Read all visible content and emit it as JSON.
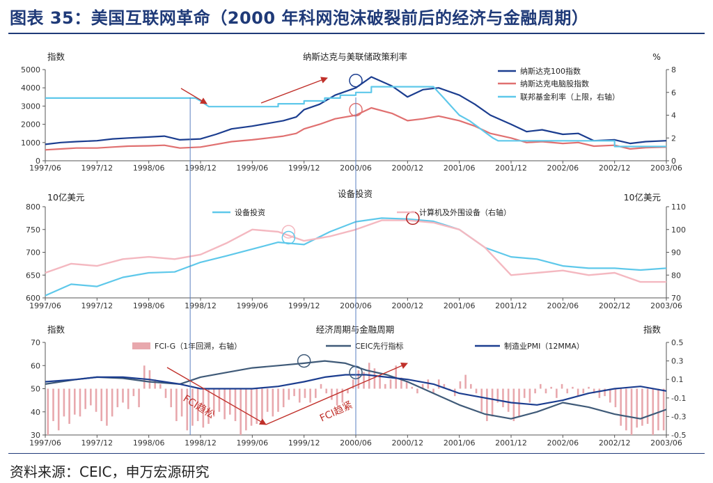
{
  "title": "图表 35：美国互联网革命（2000 年科网泡沫破裂前后的经济与金融周期）",
  "source": "资料来源：CEIC，申万宏源研究",
  "colors": {
    "title": "#1f3a78",
    "navy": "#1b3d8f",
    "red": "#e07070",
    "cyan": "#5ec8ea",
    "pink": "#f4b8c0",
    "slate": "#3f5a78",
    "bar": "#e8a8ad",
    "vline": "#5a7fc0"
  },
  "x_ticks": [
    "1997/06",
    "1997/12",
    "1998/06",
    "1998/12",
    "1999/06",
    "1999/12",
    "2000/06",
    "2000/12",
    "2001/06",
    "2001/12",
    "2002/06",
    "2002/12",
    "2003/06"
  ],
  "chart_data": [
    {
      "type": "line",
      "title": "纳斯达克与美联储政策利率",
      "ylabel_left": "指数",
      "ylabel_right": "%",
      "ylim_left": [
        0,
        5000
      ],
      "yticks_left": [
        "0",
        "1000",
        "2000",
        "3000",
        "4000",
        "5000"
      ],
      "ylim_right": [
        0,
        8
      ],
      "yticks_right": [
        "0",
        "2",
        "4",
        "6",
        "8"
      ],
      "series": [
        {
          "name": "纳斯达克100指数",
          "axis": "left",
          "color": "#1b3d8f",
          "x": [
            0,
            0.3,
            0.6,
            1,
            1.3,
            1.6,
            2,
            2.3,
            2.6,
            3,
            3.3,
            3.6,
            4,
            4.3,
            4.6,
            4.85,
            5,
            5.3,
            5.6,
            6,
            6.3,
            6.7,
            7,
            7.3,
            7.6,
            8,
            8.3,
            8.6,
            9,
            9.3,
            9.6,
            10,
            10.3,
            10.6,
            11,
            11.3,
            11.6,
            12
          ],
          "values": [
            900,
            1000,
            1050,
            1100,
            1200,
            1250,
            1300,
            1350,
            1150,
            1200,
            1450,
            1750,
            1900,
            2050,
            2200,
            2400,
            2800,
            3100,
            3600,
            4000,
            4600,
            4100,
            3500,
            3900,
            4000,
            3600,
            3100,
            2500,
            2000,
            1600,
            1700,
            1450,
            1500,
            1100,
            1150,
            950,
            1050,
            1100
          ]
        },
        {
          "name": "纳斯达克电脑股指数",
          "axis": "left",
          "color": "#e07070",
          "x": [
            0,
            0.3,
            0.6,
            1,
            1.3,
            1.6,
            2,
            2.3,
            2.6,
            3,
            3.3,
            3.6,
            4,
            4.3,
            4.6,
            4.85,
            5,
            5.3,
            5.6,
            6,
            6.3,
            6.7,
            7,
            7.3,
            7.6,
            8,
            8.3,
            8.6,
            9,
            9.3,
            9.6,
            10,
            10.3,
            10.6,
            11,
            11.3,
            11.6,
            12
          ],
          "values": [
            600,
            650,
            700,
            700,
            750,
            800,
            820,
            850,
            700,
            750,
            900,
            1050,
            1150,
            1250,
            1350,
            1500,
            1750,
            2000,
            2300,
            2500,
            2900,
            2600,
            2200,
            2300,
            2450,
            2200,
            1900,
            1500,
            1250,
            1000,
            1050,
            950,
            1000,
            800,
            850,
            650,
            720,
            750
          ]
        },
        {
          "name": "联邦基金利率（上限，右轴）",
          "axis": "right",
          "color": "#5ec8ea",
          "x": [
            0,
            1,
            2,
            2.9,
            3,
            3.08,
            3.16,
            3.3,
            4,
            4.5,
            4.5,
            5.0,
            5.0,
            5.4,
            5.4,
            5.7,
            5.7,
            6.0,
            6.0,
            6.3,
            6.3,
            7,
            7.5,
            7.6,
            7.7,
            7.8,
            7.9,
            8.0,
            8.1,
            8.2,
            8.35,
            8.5,
            8.65,
            8.75,
            8.85,
            8.95,
            9.05,
            9.3,
            9.5,
            10,
            10.5,
            11.0,
            11.0,
            12
          ],
          "values": [
            5.5,
            5.5,
            5.5,
            5.5,
            5.25,
            5.0,
            4.75,
            4.75,
            4.75,
            4.75,
            5.0,
            5.0,
            5.25,
            5.25,
            5.5,
            5.5,
            5.75,
            5.75,
            6.0,
            6.0,
            6.5,
            6.5,
            6.5,
            6.0,
            5.5,
            5.0,
            4.5,
            4.0,
            3.75,
            3.5,
            3.0,
            2.5,
            2.0,
            1.75,
            1.75,
            1.75,
            1.75,
            1.75,
            1.75,
            1.75,
            1.75,
            1.75,
            1.25,
            1.25
          ]
        }
      ],
      "annotations": [
        {
          "kind": "circle",
          "series": "纳斯达克100指数",
          "x": 6.0,
          "y": 4400
        },
        {
          "kind": "circle",
          "series": "纳斯达克电脑股指数",
          "x": 6.0,
          "y": 2800
        }
      ]
    },
    {
      "type": "line",
      "title": "设备投资",
      "ylabel_left": "10亿美元",
      "ylabel_right": "10亿美元",
      "ylim_left": [
        600,
        800
      ],
      "yticks_left": [
        "600",
        "650",
        "700",
        "750",
        "800"
      ],
      "ylim_right": [
        70,
        110
      ],
      "yticks_right": [
        "70",
        "80",
        "90",
        "100",
        "110"
      ],
      "series": [
        {
          "name": "设备投资",
          "axis": "left",
          "color": "#5ec8ea",
          "x": [
            0,
            0.5,
            1,
            1.5,
            2,
            2.5,
            3,
            3.5,
            4,
            4.5,
            5,
            5.5,
            6,
            6.5,
            7,
            7.5,
            8,
            8.5,
            9,
            9.5,
            10,
            10.5,
            11,
            11.5,
            12
          ],
          "values": [
            605,
            630,
            625,
            645,
            655,
            657,
            678,
            692,
            707,
            722,
            717,
            745,
            767,
            775,
            773,
            768,
            750,
            710,
            690,
            685,
            670,
            665,
            665,
            661,
            665
          ]
        },
        {
          "name": "计算机及外围设备（右轴）",
          "axis": "right",
          "color": "#f4b8c0",
          "x": [
            0,
            0.5,
            1,
            1.5,
            2,
            2.5,
            3,
            3.5,
            4,
            4.5,
            5,
            5.5,
            6,
            6.5,
            7,
            7.5,
            8,
            8.5,
            9,
            9.5,
            10,
            10.5,
            11,
            11.5,
            12
          ],
          "values": [
            81,
            85,
            84,
            87,
            88,
            87,
            89,
            94,
            100,
            99,
            95,
            97,
            100,
            104,
            104,
            103,
            100,
            92,
            80,
            81,
            82,
            80,
            81,
            77,
            77
          ]
        }
      ],
      "annotations": [
        {
          "kind": "circle",
          "series": "计算机及外围设备（右轴）",
          "x": 4.7,
          "y": 99
        },
        {
          "kind": "circle",
          "series": "设备投资",
          "x": 4.7,
          "y": 732
        },
        {
          "kind": "circle",
          "series": "设备投资",
          "x": 7.1,
          "y": 775
        }
      ]
    },
    {
      "type": "bar+line",
      "title": "经济周期与金融周期",
      "ylabel_left": "指数",
      "ylabel_right": "指数",
      "ylim_left": [
        30,
        70
      ],
      "yticks_left": [
        "30",
        "40",
        "50",
        "60",
        "70"
      ],
      "ylim_right": [
        -0.5,
        0.5
      ],
      "yticks_right": [
        "-0.5",
        "-0.3",
        "-0.1",
        "0.1",
        "0.3",
        "0.5"
      ],
      "bars": {
        "name": "FCI-G（1年回溯，右轴）",
        "axis": "right",
        "color": "#e8a8ad",
        "values": [
          -0.5,
          -0.35,
          -0.45,
          -0.3,
          -0.38,
          -0.28,
          -0.3,
          -0.22,
          -0.18,
          -0.25,
          -0.35,
          -0.4,
          -0.3,
          -0.2,
          -0.15,
          -0.22,
          -0.08,
          -0.2,
          0.25,
          0.2,
          0.1,
          0.05,
          -0.1,
          -0.2,
          -0.35,
          -0.3,
          -0.45,
          -0.4,
          -0.35,
          -0.42,
          -0.38,
          -0.3,
          -0.25,
          -0.33,
          -0.28,
          -0.35,
          -0.5,
          -0.45,
          -0.4,
          -0.38,
          -0.33,
          -0.25,
          -0.3,
          -0.25,
          -0.2,
          -0.12,
          -0.08,
          -0.15,
          -0.1,
          -0.15,
          -0.1,
          0.05,
          -0.05,
          -0.12,
          -0.18,
          -0.15,
          -0.05,
          0.1,
          0.2,
          0.18,
          0.28,
          0.22,
          0.15,
          0.05,
          0.1,
          0.25,
          0.12,
          0.08,
          0.02,
          -0.05,
          0.05,
          0.1,
          -0.05,
          0.1,
          0.05,
          -0.02,
          -0.08,
          0.08,
          0.15,
          0.05,
          -0.05,
          -0.25,
          -0.35,
          -0.3,
          -0.15,
          -0.2,
          -0.25,
          -0.35,
          -0.3,
          -0.1,
          -0.15,
          -0.05,
          0.05,
          -0.05,
          0.02,
          -0.1,
          0.05,
          -0.05,
          0.02,
          -0.08,
          -0.05,
          0.02,
          -0.05,
          -0.1,
          -0.08,
          -0.15,
          -0.2,
          -0.4,
          -0.45,
          -0.5,
          -0.42,
          -0.4,
          -0.38,
          -0.5,
          -0.45,
          -0.45
        ]
      },
      "series": [
        {
          "name": "CEIC先行指标",
          "axis": "left",
          "color": "#3f5a78",
          "x": [
            0,
            0.6,
            1,
            1.5,
            2,
            2.6,
            3,
            3.5,
            4,
            4.5,
            5,
            5.4,
            5.8,
            6.2,
            6.6,
            7,
            7.5,
            8,
            8.5,
            9,
            9.5,
            10,
            10.5,
            11,
            11.5,
            12
          ],
          "values": [
            52,
            54,
            55,
            54.5,
            53,
            52,
            55,
            57,
            59,
            60,
            61,
            62,
            61,
            58,
            56,
            53,
            48,
            43,
            39,
            37,
            40,
            44,
            42,
            39,
            37,
            41
          ]
        },
        {
          "name": "制造业PMI（12MMA）",
          "axis": "left",
          "color": "#1b3d8f",
          "x": [
            0,
            0.6,
            1,
            1.5,
            2,
            2.6,
            3,
            3.5,
            4,
            4.5,
            5,
            5.4,
            5.8,
            6.2,
            6.6,
            7,
            7.5,
            8,
            8.5,
            9,
            9.5,
            10,
            10.5,
            11,
            11.5,
            12
          ],
          "values": [
            53,
            54,
            55,
            55,
            54,
            52,
            50,
            50,
            50,
            51,
            53,
            55,
            56,
            56,
            55,
            54,
            52,
            48,
            46,
            44,
            43,
            45,
            48,
            50,
            51,
            49
          ]
        }
      ],
      "annotations": [
        {
          "kind": "circle",
          "series": "CEIC先行指标",
          "x": 5.0,
          "y": 62
        },
        {
          "kind": "circle",
          "series": "CEIC先行指标",
          "x": 6.0,
          "y": 57
        }
      ],
      "arrow_labels": [
        "FCI趋松",
        "FCI趋紧"
      ]
    }
  ]
}
